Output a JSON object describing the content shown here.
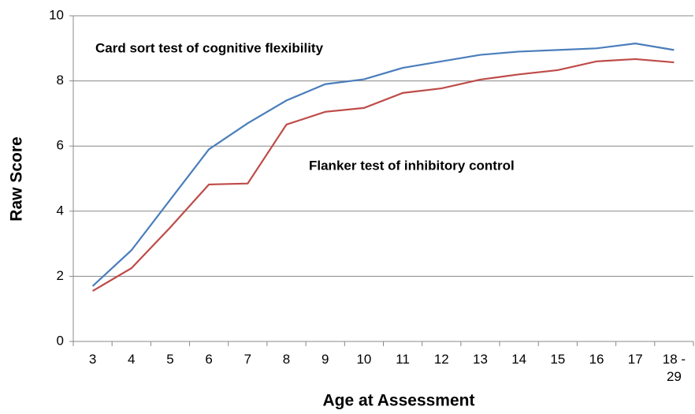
{
  "chart_data": {
    "type": "line",
    "y_label": "Raw Score",
    "x_label": "Age at Assessment",
    "categories": [
      "3",
      "4",
      "5",
      "6",
      "7",
      "8",
      "9",
      "10",
      "11",
      "12",
      "13",
      "14",
      "15",
      "16",
      "17",
      "18 - 29"
    ],
    "series": [
      {
        "name": "Card sort test of cognitive flexibility",
        "color": "#4a7ebb",
        "values": [
          1.7,
          2.8,
          4.35,
          5.9,
          6.7,
          7.4,
          7.9,
          8.05,
          8.4,
          8.6,
          8.8,
          8.9,
          8.95,
          9.0,
          9.15,
          8.95
        ]
      },
      {
        "name": "Flanker test of inhibitory control",
        "color": "#be4b48",
        "values": [
          1.55,
          2.25,
          3.5,
          4.82,
          4.85,
          6.66,
          7.05,
          7.17,
          7.63,
          7.77,
          8.04,
          8.2,
          8.33,
          8.6,
          8.67,
          8.57
        ]
      }
    ],
    "ylim": [
      0,
      10
    ],
    "yticks": [
      0,
      2,
      4,
      6,
      8,
      10
    ],
    "grid": true
  }
}
